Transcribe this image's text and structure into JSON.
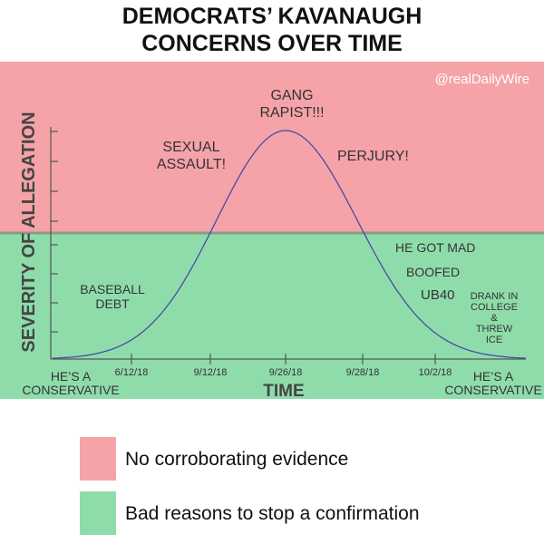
{
  "header": {
    "title_lines": [
      "DEMOCRATS’ KAVANAUGH",
      "CONCERNS OVER TIME"
    ],
    "watermark": "@realDailyWire"
  },
  "axes": {
    "y_label": "SEVERITY OF ALLEGATION",
    "x_label": "TIME",
    "x_ticks": [
      "6/12/18",
      "9/12/18",
      "9/26/18",
      "9/28/18",
      "10/2/18"
    ],
    "x_start": [
      "HE’S A",
      "CONSERVATIVE"
    ],
    "x_end": [
      "HE’S A",
      "CONSERVATIVE"
    ]
  },
  "annotations": [
    {
      "lines": [
        "GANG",
        "RAPIST!!!"
      ]
    },
    {
      "lines": [
        "SEXUAL",
        "ASSAULT!"
      ]
    },
    {
      "lines": [
        "PERJURY!"
      ]
    },
    {
      "lines": [
        "HE GOT MAD"
      ]
    },
    {
      "lines": [
        "BOOFED"
      ]
    },
    {
      "lines": [
        "UB40"
      ]
    },
    {
      "lines": [
        "DRANK IN",
        "COLLEGE",
        "&",
        "THREW",
        "ICE"
      ]
    },
    {
      "lines": [
        "BASEBALL",
        "DEBT"
      ]
    }
  ],
  "legend": [
    {
      "label": "No corroborating evidence"
    },
    {
      "label": "Bad reasons to stop a confirmation"
    }
  ]
}
